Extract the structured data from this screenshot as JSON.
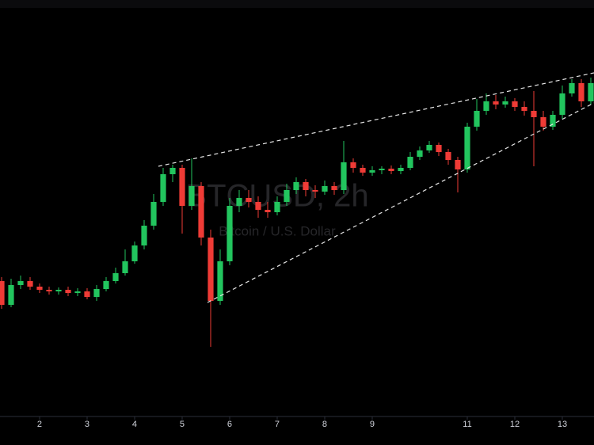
{
  "chart_data": {
    "type": "candlestick",
    "title": "BTCUSD, 2h",
    "subtitle": "Bitcoin / U.S. Dollar",
    "x": [
      1.2,
      1.4,
      1.6,
      1.8,
      2.0,
      2.2,
      2.4,
      2.6,
      2.8,
      3.0,
      3.2,
      3.4,
      3.6,
      3.8,
      4.0,
      4.2,
      4.4,
      4.6,
      4.8,
      5.0,
      5.2,
      5.4,
      5.6,
      5.8,
      6.0,
      6.2,
      6.4,
      6.6,
      6.8,
      7.0,
      7.2,
      7.4,
      7.6,
      7.8,
      8.0,
      8.2,
      8.4,
      8.6,
      8.8,
      9.0,
      9.2,
      9.4,
      9.6,
      9.8,
      10.0,
      10.2,
      10.4,
      10.6,
      10.8,
      11.0,
      11.2,
      11.4,
      11.6,
      11.8,
      12.0,
      12.2,
      12.4,
      12.6,
      12.8,
      13.0,
      13.2,
      13.4,
      13.6
    ],
    "open": [
      170,
      140,
      165,
      170,
      163,
      159,
      157,
      159,
      155,
      157,
      150,
      160,
      170,
      180,
      195,
      215,
      240,
      270,
      305,
      313,
      265,
      290,
      225,
      145,
      195,
      265,
      275,
      270,
      260,
      257,
      270,
      285,
      295,
      285,
      283,
      290,
      285,
      320,
      313,
      307,
      310,
      312,
      309,
      313,
      327,
      335,
      342,
      333,
      323,
      311,
      365,
      385,
      397,
      393,
      397,
      390,
      385,
      377,
      365,
      380,
      407,
      420,
      397
    ],
    "high": [
      175,
      173,
      177,
      175,
      167,
      163,
      162,
      163,
      161,
      161,
      165,
      175,
      187,
      210,
      220,
      247,
      280,
      313,
      317,
      317,
      325,
      295,
      235,
      210,
      275,
      285,
      285,
      277,
      270,
      277,
      293,
      301,
      299,
      291,
      297,
      295,
      347,
      325,
      317,
      315,
      315,
      316,
      317,
      333,
      340,
      347,
      345,
      337,
      327,
      370,
      400,
      407,
      405,
      403,
      401,
      397,
      410,
      385,
      385,
      417,
      425,
      425,
      427
    ],
    "low": [
      135,
      137,
      160,
      159,
      155,
      153,
      153,
      151,
      151,
      147,
      145,
      157,
      167,
      177,
      192,
      210,
      235,
      265,
      295,
      230,
      260,
      215,
      87,
      140,
      190,
      257,
      263,
      250,
      250,
      253,
      265,
      280,
      277,
      275,
      279,
      279,
      280,
      307,
      303,
      303,
      305,
      305,
      305,
      310,
      323,
      332,
      328,
      317,
      282,
      307,
      360,
      380,
      387,
      389,
      385,
      379,
      315,
      360,
      361,
      375,
      403,
      390,
      393
    ],
    "close": [
      140,
      165,
      170,
      163,
      159,
      157,
      159,
      155,
      157,
      150,
      160,
      170,
      180,
      195,
      215,
      240,
      270,
      305,
      313,
      265,
      290,
      225,
      145,
      195,
      265,
      275,
      270,
      260,
      257,
      270,
      285,
      295,
      285,
      283,
      290,
      285,
      320,
      313,
      307,
      310,
      312,
      309,
      313,
      327,
      335,
      342,
      333,
      323,
      311,
      365,
      385,
      397,
      393,
      397,
      390,
      385,
      377,
      365,
      380,
      407,
      420,
      397,
      420
    ],
    "up_color": "#22c55e",
    "down_color": "#ef3b36",
    "xlim": [
      1.1667,
      13.6667
    ],
    "ylim": [
      0,
      525
    ],
    "xticks": [
      2,
      3,
      4,
      5,
      6,
      7,
      8,
      9,
      11,
      12,
      13
    ]
  }
}
